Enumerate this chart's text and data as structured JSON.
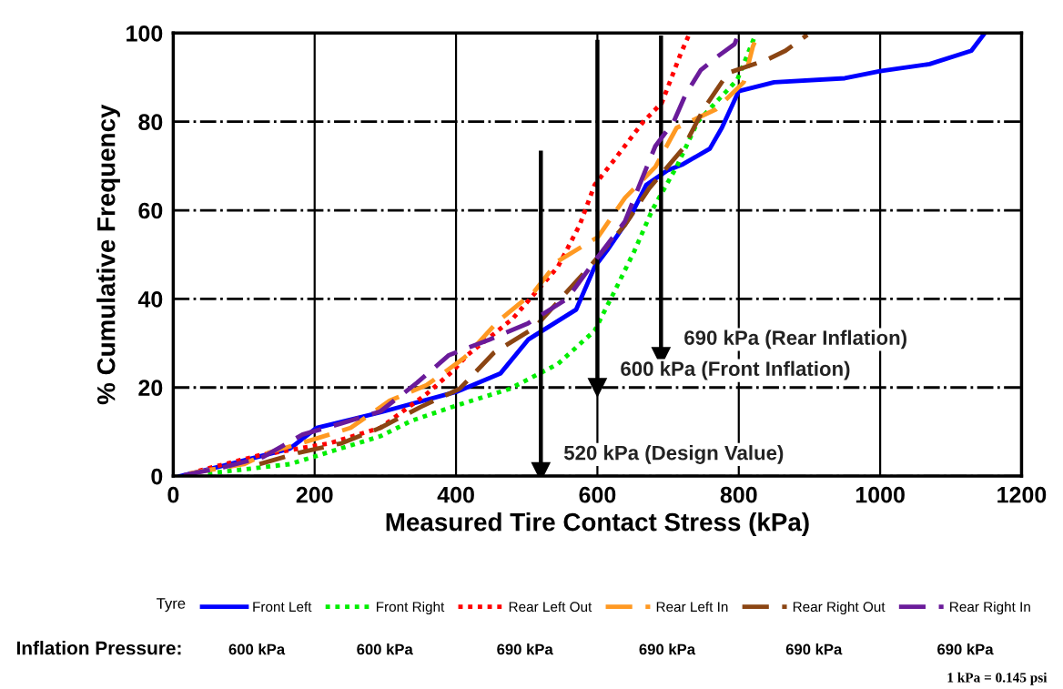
{
  "chart_data": {
    "type": "line",
    "xlabel": "Measured Tire Contact Stress (kPa)",
    "ylabel": "% Cumulative Frequency",
    "legend_title": "Tyre",
    "legend": "bottom",
    "grid": true,
    "xlim": [
      0,
      1200
    ],
    "xticks": [
      0,
      200,
      400,
      600,
      800,
      1000,
      1200
    ],
    "ylim": [
      0,
      100
    ],
    "yticks": [
      0,
      20,
      40,
      60,
      80,
      100
    ],
    "series": [
      {
        "name": "Front Left",
        "color": "#0000ff",
        "line_style": "solid",
        "x": [
          10,
          80,
          165,
          203,
          293,
          402,
          463,
          502,
          570,
          596,
          614,
          647,
          669,
          699,
          721,
          759,
          776,
          800,
          850,
          950,
          1000,
          1070,
          1129,
          1148
        ],
        "values": [
          0,
          2.7,
          6.2,
          10.9,
          14.4,
          19.1,
          23.2,
          30.8,
          37.6,
          47.2,
          51,
          58.7,
          65.7,
          69,
          70.4,
          73.9,
          78.6,
          86.9,
          88.9,
          89.8,
          91.4,
          93,
          96,
          100
        ]
      },
      {
        "name": "Front Right",
        "color": "#00ee00",
        "line_style": "dotted",
        "x": [
          49,
          165,
          293,
          337,
          402,
          476,
          544,
          596,
          622,
          652,
          678,
          712,
          742,
          798,
          824
        ],
        "values": [
          0.6,
          2.7,
          9,
          12.5,
          16,
          19.7,
          25.3,
          32.8,
          41,
          50.7,
          60.2,
          69.8,
          80,
          89.5,
          99.8
        ]
      },
      {
        "name": "Rear Left Out",
        "color": "#ff0000",
        "line_style": "dotted",
        "x": [
          36,
          122,
          221,
          293,
          358,
          396,
          416,
          480,
          544,
          575,
          596,
          622,
          665,
          691,
          717,
          730
        ],
        "values": [
          1.2,
          4.7,
          7.4,
          10.9,
          18.5,
          23.8,
          27.3,
          35.5,
          47.2,
          56.7,
          65.7,
          71,
          80,
          84.2,
          95,
          99.8
        ]
      },
      {
        "name": "Rear Left In",
        "color": "#ff9922",
        "line_style": "dashed",
        "x": [
          23,
          100,
          135,
          197,
          251,
          306,
          358,
          405,
          416,
          459,
          511,
          544,
          601,
          639,
          682,
          712,
          768,
          807,
          820,
          828
        ],
        "values": [
          0.6,
          2.7,
          5.3,
          8.2,
          10.9,
          17,
          20.5,
          25.9,
          27.3,
          34.9,
          41.7,
          48.5,
          54,
          62.8,
          69.8,
          78.6,
          82.8,
          88.9,
          97,
          100
        ]
      },
      {
        "name": "Rear Right Out",
        "color": "#8b4513",
        "line_style": "dashed",
        "x": [
          122,
          178,
          238,
          293,
          350,
          405,
          454,
          511,
          592,
          639,
          673,
          721,
          750,
          785,
          840,
          866,
          897
        ],
        "values": [
          2.7,
          5.3,
          7.4,
          10.9,
          15.6,
          19.7,
          27.9,
          33.5,
          47.8,
          56.7,
          64.9,
          73.9,
          82.8,
          91,
          94,
          96,
          99.6
        ]
      },
      {
        "color": "#000000",
        "line_style": "solid",
        "x": [
          520,
          520
        ],
        "values": [
          73,
          1
        ]
      },
      {
        "color": "#000000",
        "line_style": "solid",
        "x": [
          600,
          600
        ],
        "values": [
          98,
          20
        ]
      },
      {
        "color": "#000000",
        "line_style": "solid",
        "x": [
          690,
          690
        ],
        "values": [
          99,
          27
        ]
      },
      {
        "name": "Rear Right In",
        "color": "#6a1b9a",
        "line_style": "dashed",
        "x": [
          15,
          71,
          127,
          183,
          238,
          293,
          345,
          390,
          447,
          502,
          557,
          596,
          639,
          660,
          682,
          708,
          725,
          746,
          768,
          794,
          800
        ],
        "values": [
          0.2,
          2,
          4.3,
          9.4,
          11.9,
          14.6,
          21.1,
          27.3,
          30.8,
          34.5,
          40,
          48.5,
          57.5,
          65.9,
          74.5,
          80,
          86.2,
          91.6,
          94.5,
          97.5,
          100
        ]
      }
    ],
    "annotations": [
      {
        "text": "520 kPa (Design Value)",
        "x": 520,
        "y": 1
      },
      {
        "text": "600 kPa (Front Inflation)",
        "x": 600,
        "y": 20
      },
      {
        "text": "690 kPa (Rear Inflation)",
        "x": 690,
        "y": 27
      },
      "Inflation Pressure:",
      "600 kPa",
      "600 kPa",
      "690 kPa",
      "690 kPa",
      "690 kPa",
      "690 kPa",
      "1 kPa = 0.145 psi"
    ]
  }
}
